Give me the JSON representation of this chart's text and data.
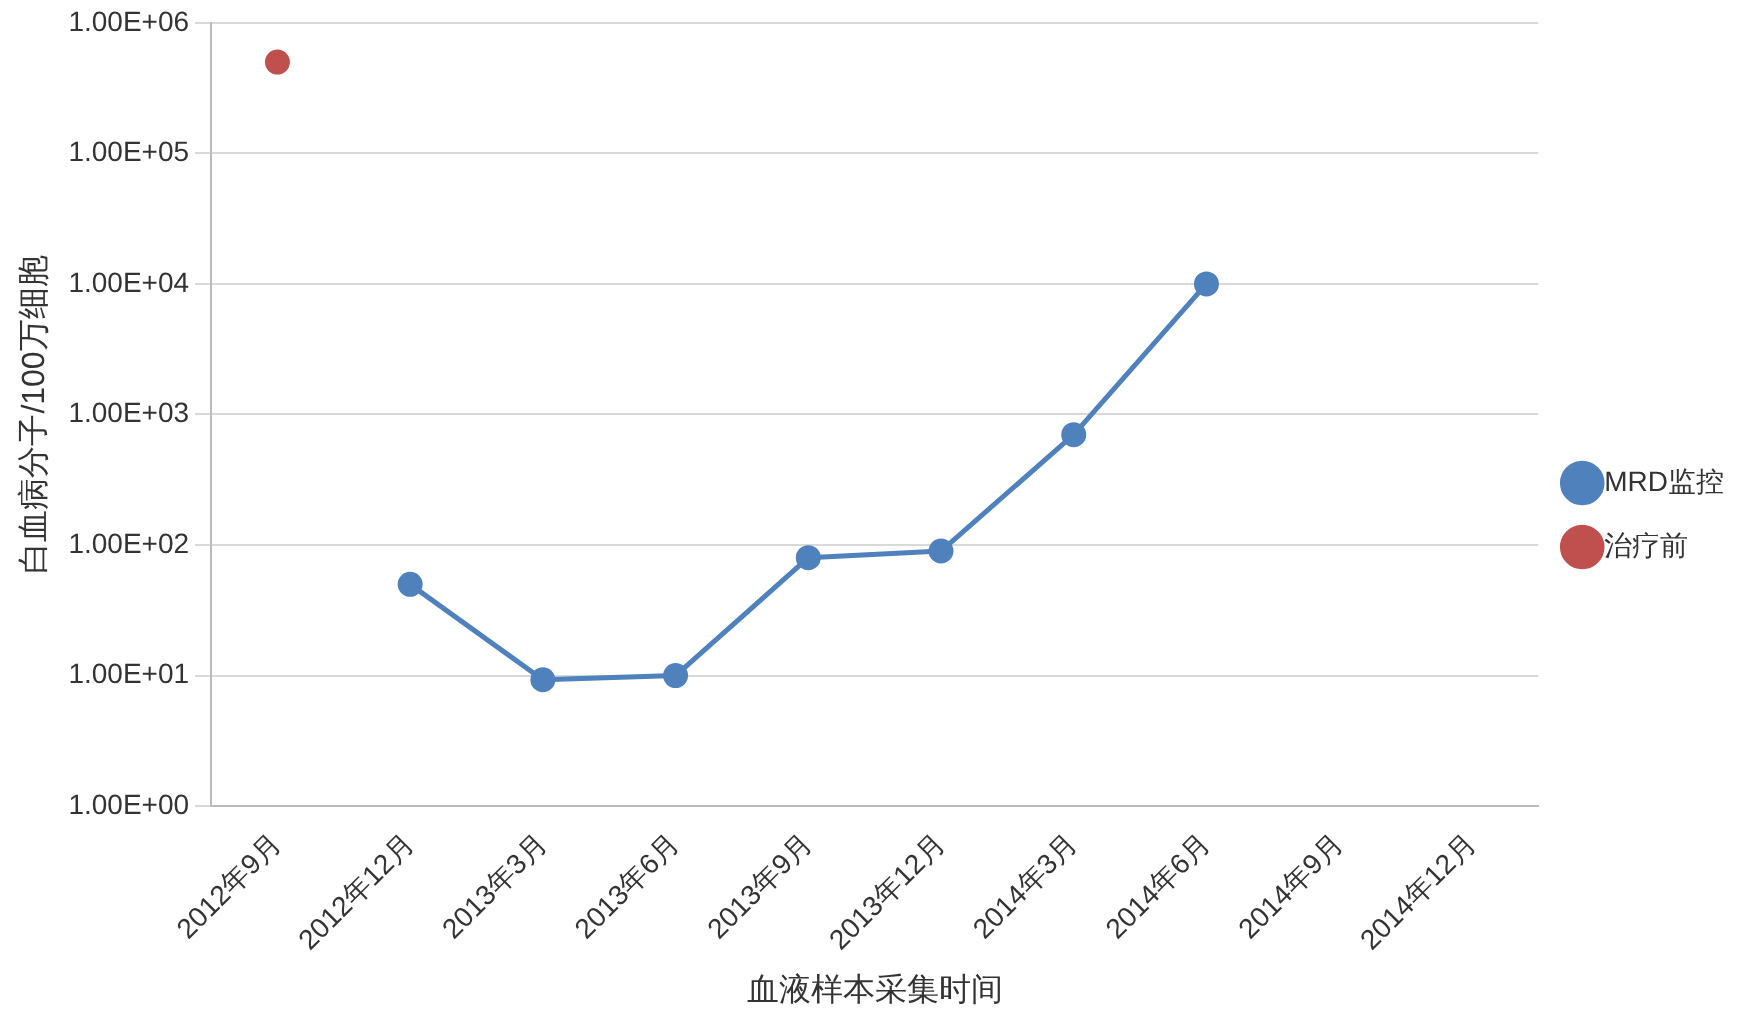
{
  "chart_data": {
    "type": "line",
    "xlabel": "血液样本采集时间",
    "ylabel": "白血病分子/100万细胞",
    "categories": [
      "2012年9月",
      "2012年12月",
      "2013年3月",
      "2013年6月",
      "2013年9月",
      "2013年12月",
      "2014年3月",
      "2014年6月",
      "2014年9月",
      "2014年12月"
    ],
    "series": [
      {
        "name": "MRD监控",
        "color": "#4f81bd",
        "values": [
          null,
          50,
          9.3,
          10,
          80,
          90,
          700,
          10000,
          null,
          null
        ]
      },
      {
        "name": "治疗前",
        "color": "#c0504d",
        "values": [
          500000,
          null,
          null,
          null,
          null,
          null,
          null,
          null,
          null,
          null
        ]
      }
    ],
    "log": "y",
    "ylim": [
      1,
      1000000
    ],
    "yticks": [
      {
        "value": 1,
        "label": "1.00E+00"
      },
      {
        "value": 10,
        "label": "1.00E+01"
      },
      {
        "value": 100,
        "label": "1.00E+02"
      },
      {
        "value": 1000,
        "label": "1.00E+03"
      },
      {
        "value": 10000,
        "label": "1.00E+04"
      },
      {
        "value": 100000,
        "label": "1.00E+05"
      },
      {
        "value": 1000000,
        "label": "1.00E+06"
      }
    ],
    "grid": "y",
    "legend": "right",
    "marker": "circle",
    "line_style": "solid"
  }
}
